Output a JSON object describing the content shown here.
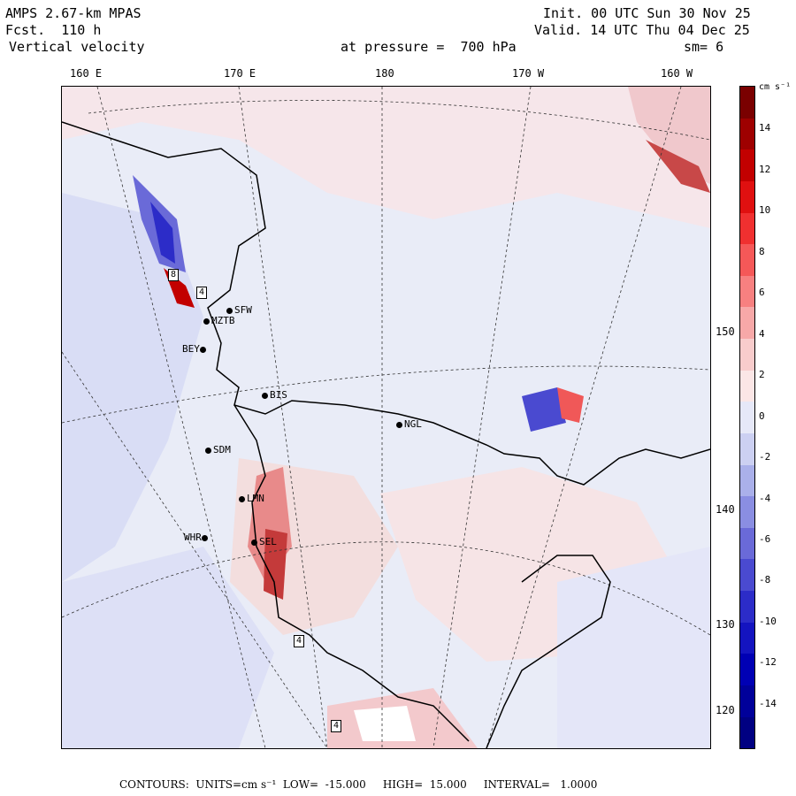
{
  "header": {
    "model": "AMPS 2.67-km MPAS",
    "forecast": "Fcst.  110 h",
    "field": "Vertical velocity",
    "init": "Init. 00 UTC Sun 30 Nov 25",
    "valid": "Valid. 14 UTC Thu 04 Dec 25",
    "level": "at pressure =  700 hPa",
    "smooth": "sm= 6"
  },
  "longitudes": [
    "160 E",
    "170 E",
    "180",
    "170 W",
    "160 W"
  ],
  "latitudes": [
    "150 W",
    "140 W",
    "130 W",
    "120 W"
  ],
  "stations": [
    "MZTB",
    "BEY",
    "BIS",
    "NGL",
    "SDM",
    "LMN",
    "WHR",
    "SEL",
    "SFW"
  ],
  "highlow_markers": [
    "8",
    "4",
    "4",
    "4"
  ],
  "colorbar": {
    "unit": "cm s⁻¹",
    "ticks": [
      "14",
      "12",
      "10",
      "8",
      "6",
      "4",
      "2",
      "0",
      "-2",
      "-4",
      "-6",
      "-8",
      "-10",
      "-12",
      "-14"
    ],
    "colors": [
      "#7a0000",
      "#9e0000",
      "#c20000",
      "#e01010",
      "#f03030",
      "#f55858",
      "#f78080",
      "#f7a8a8",
      "#f8cccc",
      "#fbe6e6",
      "#e6e8f8",
      "#ccd0f2",
      "#aab0ea",
      "#8a8ee2",
      "#6a6ad8",
      "#4a4ad0",
      "#2c2cc8",
      "#1414c0",
      "#0000b4",
      "#00009a",
      "#000082"
    ]
  },
  "footer": {
    "text": "CONTOURS:  UNITS=cm s⁻¹  LOW=  -15.000     HIGH=  15.000     INTERVAL=   1.0000"
  }
}
